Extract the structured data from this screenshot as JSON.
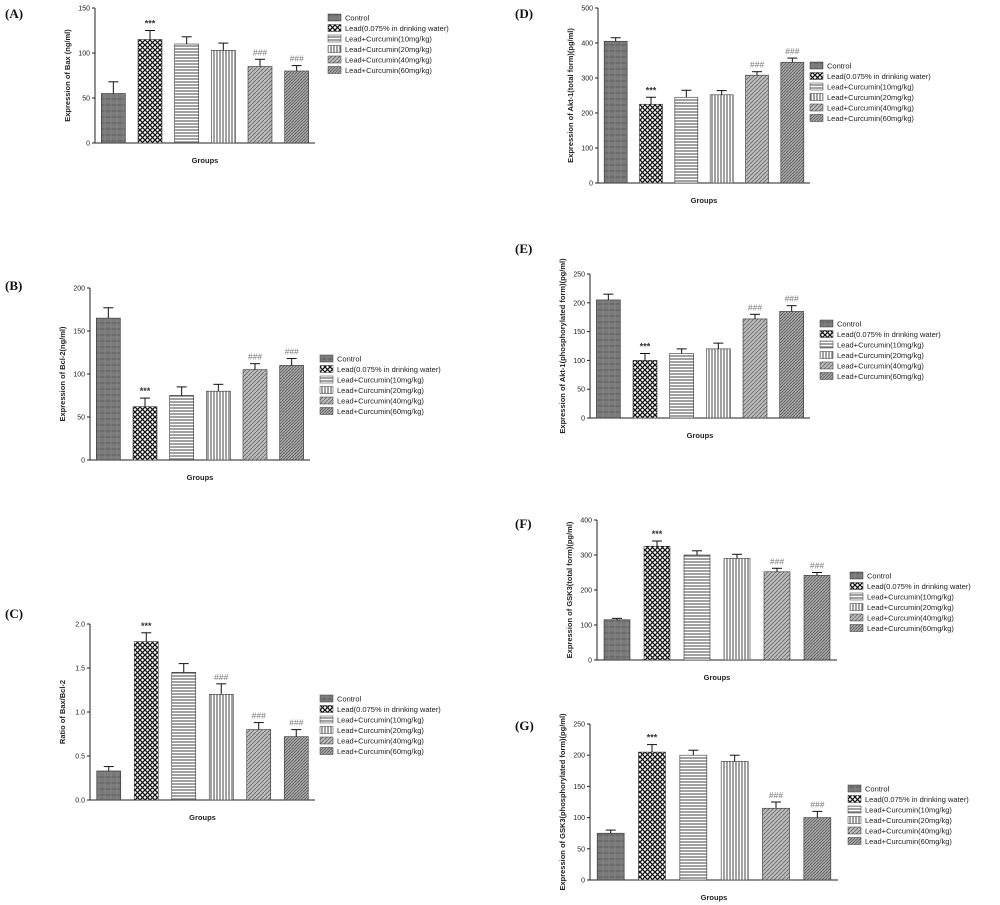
{
  "colors": {
    "axis": "#222222",
    "bar_stroke": "#333333",
    "star": "#333333",
    "hash": "#777777"
  },
  "legend_labels": [
    "Control",
    "Lead(0.075% in drinking water)",
    "Lead+Curcumin(10mg/kg)",
    "Lead+Curcumin(20mg/kg)",
    "Lead+Curcumin(40mg/kg)",
    "Lead+Curcumin(60mg/kg)"
  ],
  "bar_patterns": [
    "control-texture",
    "crosshatch",
    "horizontal-lines",
    "vertical-lines",
    "diagonal-hatch",
    "dense-diagonal"
  ],
  "chart_data": [
    {
      "panel": "(A)",
      "type": "bar",
      "ylabel": "Expression of Bax (ng/ml)",
      "xlabel": "Groups",
      "ylim": [
        0,
        150
      ],
      "yticks": [
        0,
        50,
        100,
        150
      ],
      "categories": [
        "Control",
        "Lead(0.075% in drinking water)",
        "Lead+Curcumin(10mg/kg)",
        "Lead+Curcumin(20mg/kg)",
        "Lead+Curcumin(40mg/kg)",
        "Lead+Curcumin(60mg/kg)"
      ],
      "values": [
        55,
        115,
        110,
        103,
        85,
        80
      ],
      "errors": [
        13,
        10,
        8,
        8,
        8,
        6
      ],
      "annotations": [
        "",
        "***",
        "",
        "",
        "###",
        "###"
      ]
    },
    {
      "panel": "(B)",
      "type": "bar",
      "ylabel": "Expression of Bcl-2(ng/ml)",
      "xlabel": "Groups",
      "ylim": [
        0,
        200
      ],
      "yticks": [
        0,
        50,
        100,
        150,
        200
      ],
      "categories": [
        "Control",
        "Lead(0.075% in drinking water)",
        "Lead+Curcumin(10mg/kg)",
        "Lead+Curcumin(20mg/kg)",
        "Lead+Curcumin(40mg/kg)",
        "Lead+Curcumin(60mg/kg)"
      ],
      "values": [
        165,
        62,
        75,
        80,
        105,
        110
      ],
      "errors": [
        12,
        10,
        10,
        8,
        7,
        8
      ],
      "annotations": [
        "",
        "***",
        "",
        "",
        "###",
        "###"
      ]
    },
    {
      "panel": "(C)",
      "type": "bar",
      "ylabel": "Ratio of Bax/Bcl-2",
      "xlabel": "Groups",
      "ylim": [
        0,
        2.0
      ],
      "yticks": [
        "0.0",
        "0.5",
        "1.0",
        "1.5",
        "2.0"
      ],
      "categories": [
        "Control",
        "Lead(0.075% in drinking water)",
        "Lead+Curcumin(10mg/kg)",
        "Lead+Curcumin(20mg/kg)",
        "Lead+Curcumin(40mg/kg)",
        "Lead+Curcumin(60mg/kg)"
      ],
      "values": [
        0.33,
        1.8,
        1.45,
        1.2,
        0.8,
        0.72
      ],
      "errors": [
        0.05,
        0.1,
        0.1,
        0.12,
        0.08,
        0.08
      ],
      "annotations": [
        "",
        "***",
        "",
        "###",
        "###",
        "###"
      ]
    },
    {
      "panel": "(D)",
      "type": "bar",
      "ylabel": "Expression of Akt-1(total form)(pg/ml)",
      "xlabel": "Groups",
      "ylim": [
        0,
        500
      ],
      "yticks": [
        0,
        100,
        200,
        300,
        400,
        500
      ],
      "categories": [
        "Control",
        "Lead(0.075% in drinking water)",
        "Lead+Curcumin(10mg/kg)",
        "Lead+Curcumin(20mg/kg)",
        "Lead+Curcumin(40mg/kg)",
        "Lead+Curcumin(60mg/kg)"
      ],
      "values": [
        405,
        225,
        245,
        252,
        308,
        345
      ],
      "errors": [
        10,
        20,
        20,
        12,
        10,
        12
      ],
      "annotations": [
        "",
        "***",
        "",
        "",
        "###",
        "###"
      ]
    },
    {
      "panel": "(E)",
      "type": "bar",
      "ylabel": "Expression of Akt-1(phosphorylated form)(pg/ml)",
      "xlabel": "Groups",
      "ylim": [
        0,
        250
      ],
      "yticks": [
        0,
        50,
        100,
        150,
        200,
        250
      ],
      "categories": [
        "Control",
        "Lead(0.075% in drinking water)",
        "Lead+Curcumin(10mg/kg)",
        "Lead+Curcumin(20mg/kg)",
        "Lead+Curcumin(40mg/kg)",
        "Lead+Curcumin(60mg/kg)"
      ],
      "values": [
        205,
        100,
        112,
        120,
        172,
        185
      ],
      "errors": [
        10,
        12,
        8,
        10,
        8,
        10
      ],
      "annotations": [
        "",
        "***",
        "",
        "",
        "###",
        "###"
      ]
    },
    {
      "panel": "(F)",
      "type": "bar",
      "ylabel": "Expression of GSK3(total form)(pg/ml)",
      "xlabel": "Groups",
      "ylim": [
        0,
        400
      ],
      "yticks": [
        0,
        100,
        200,
        300,
        400
      ],
      "categories": [
        "Control",
        "Lead(0.075% in drinking water)",
        "Lead+Curcumin(10mg/kg)",
        "Lead+Curcumin(20mg/kg)",
        "Lead+Curcumin(40mg/kg)",
        "Lead+Curcumin(60mg/kg)"
      ],
      "values": [
        115,
        325,
        300,
        290,
        252,
        242
      ],
      "errors": [
        4,
        15,
        12,
        12,
        10,
        8
      ],
      "annotations": [
        "",
        "***",
        "",
        "",
        "###",
        "###"
      ]
    },
    {
      "panel": "(G)",
      "type": "bar",
      "ylabel": "Expression of GSK3(phosphorylated form)(pg/ml)",
      "xlabel": "Groups",
      "ylim": [
        0,
        250
      ],
      "yticks": [
        0,
        50,
        100,
        150,
        200,
        250
      ],
      "categories": [
        "Control",
        "Lead(0.075% in drinking water)",
        "Lead+Curcumin(10mg/kg)",
        "Lead+Curcumin(20mg/kg)",
        "Lead+Curcumin(40mg/kg)",
        "Lead+Curcumin(60mg/kg)"
      ],
      "values": [
        75,
        205,
        200,
        190,
        115,
        100
      ],
      "errors": [
        5,
        12,
        8,
        10,
        10,
        10
      ],
      "annotations": [
        "",
        "***",
        "",
        "",
        "###",
        "###"
      ]
    }
  ]
}
